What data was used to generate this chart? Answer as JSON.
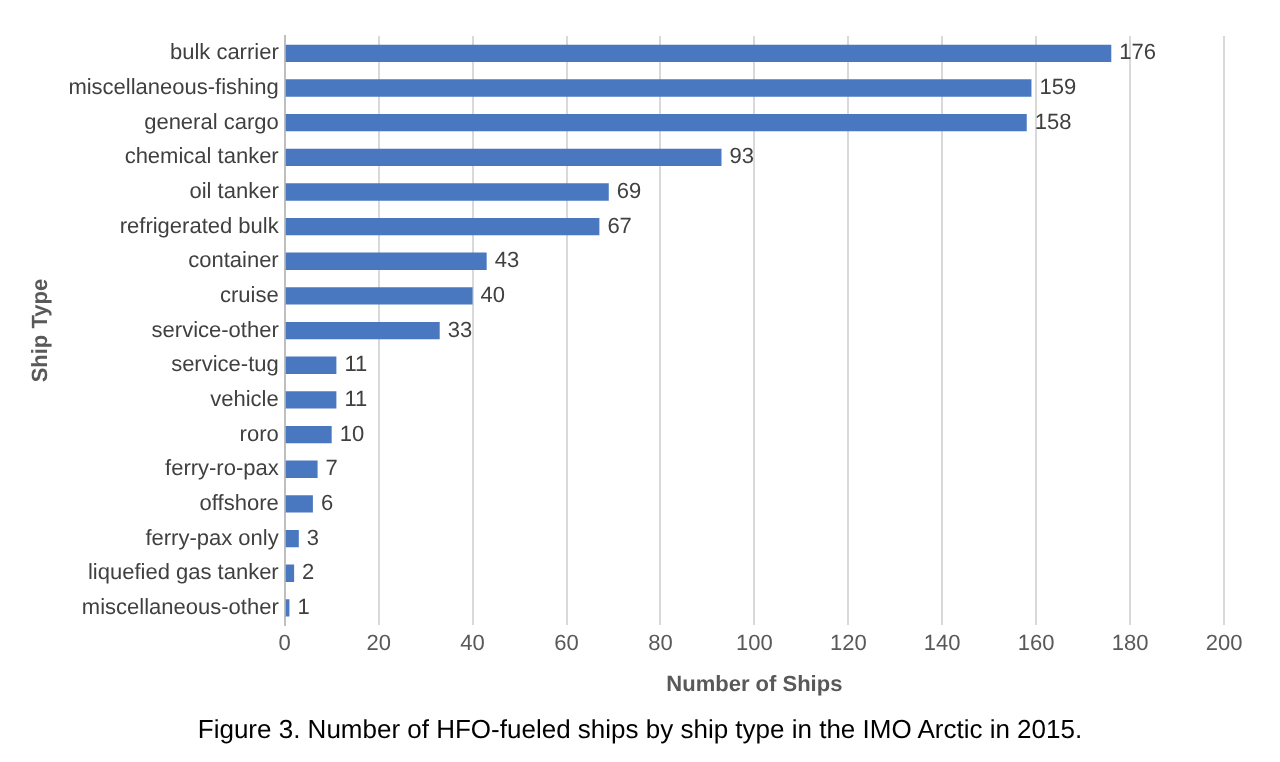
{
  "chart_data": {
    "type": "bar",
    "orientation": "horizontal",
    "categories": [
      "bulk carrier",
      "miscellaneous-fishing",
      "general cargo",
      "chemical tanker",
      "oil tanker",
      "refrigerated bulk",
      "container",
      "cruise",
      "service-other",
      "service-tug",
      "vehicle",
      "roro",
      "ferry-ro-pax",
      "offshore",
      "ferry-pax only",
      "liquefied gas tanker",
      "miscellaneous-other"
    ],
    "values": [
      176,
      159,
      158,
      93,
      69,
      67,
      43,
      40,
      33,
      11,
      11,
      10,
      7,
      6,
      3,
      2,
      1
    ],
    "color": "#4a78c0",
    "xlim": [
      0,
      200
    ],
    "xticks": [
      0,
      20,
      40,
      60,
      80,
      100,
      120,
      140,
      160,
      180,
      200
    ],
    "grid": "x",
    "data_labels": true,
    "legend": false,
    "xlabel": "Number of Ships",
    "ylabel": "Ship Type",
    "annotations": [
      "Figure 3. Number of HFO-fueled ships by ship type in the IMO Arctic in 2015."
    ]
  }
}
